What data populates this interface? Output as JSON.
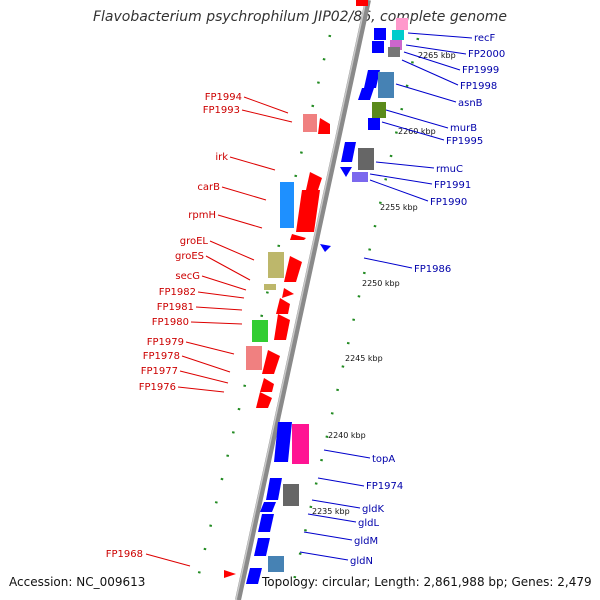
{
  "title": "Flavobacterium psychrophilum JIP02/86, complete genome",
  "footer": {
    "accession": "Accession: NC_009613",
    "summary": "Topology: circular; Length: 2,861,988 bp; Genes: 2,479"
  },
  "ticks": [
    "2265 kbp",
    "2260 kbp",
    "2255 kbp",
    "2250 kbp",
    "2245 kbp",
    "2240 kbp",
    "2235 kbp"
  ],
  "left_genes": [
    "FP1994",
    "FP1993",
    "irk",
    "carB",
    "rpmH",
    "groEL",
    "groES",
    "secG",
    "FP1982",
    "FP1981",
    "FP1980",
    "FP1979",
    "FP1978",
    "FP1977",
    "FP1976",
    "FP1968"
  ],
  "right_genes": [
    "recF",
    "FP2000",
    "FP1999",
    "FP1998",
    "asnB",
    "murB",
    "FP1995",
    "rmuC",
    "FP1991",
    "FP1990",
    "FP1986",
    "topA",
    "FP1974",
    "gldK",
    "gldL",
    "gldM",
    "gldN"
  ],
  "colors": {
    "backbone": "#8a8a8a",
    "forward_strand": "#ff0000",
    "reverse_strand": "#0000ff",
    "left_label": "#cc0000",
    "right_label": "#0000aa",
    "dots": "#228b22"
  }
}
